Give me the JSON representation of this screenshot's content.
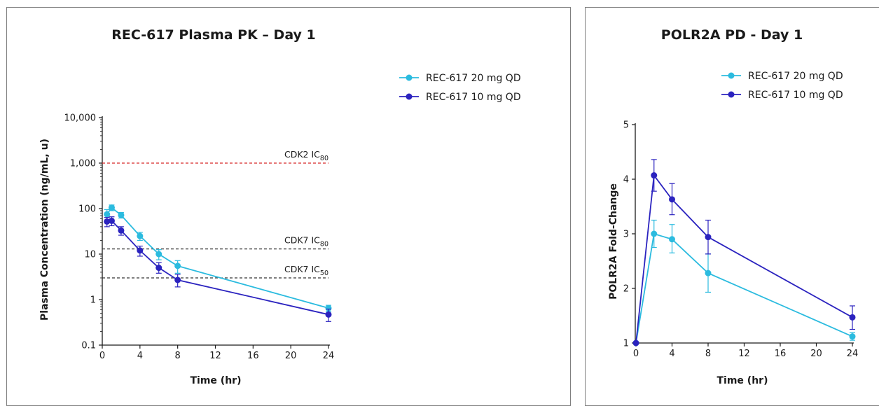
{
  "colors": {
    "series_20mg": "#2bbbdf",
    "series_10mg": "#2b23bf",
    "cdk2_line": "#d62728",
    "cdk7_line": "#333333",
    "axis": "#1a1a1a"
  },
  "chart_data": [
    {
      "type": "line",
      "title": "REC-617 Plasma PK – Day 1",
      "xlabel": "Time (hr)",
      "ylabel": "Plasma Concentration (ng/mL, u)",
      "yscale": "log",
      "xlim": [
        0,
        24
      ],
      "ylim": [
        0.1,
        10000
      ],
      "xticks": [
        0,
        4,
        8,
        12,
        16,
        20,
        24
      ],
      "xtick_labels": [
        "0",
        "4",
        "8",
        "12",
        "16",
        "20",
        "24"
      ],
      "yticks": [
        0.1,
        1,
        10,
        100,
        1000,
        10000
      ],
      "ytick_labels": [
        "0.1",
        "1",
        "10",
        "100",
        "1,000",
        "10,000"
      ],
      "legend_position": "top-right",
      "series": [
        {
          "name": "REC-617 20 mg QD",
          "x": [
            0.5,
            1,
            2,
            4,
            6,
            8,
            24
          ],
          "y": [
            75,
            105,
            72,
            25,
            10,
            5.5,
            0.65
          ],
          "err_low": [
            55,
            90,
            62,
            20,
            7.5,
            3.8,
            0.55
          ],
          "err_high": [
            95,
            120,
            82,
            30,
            12.5,
            7.2,
            0.75
          ]
        },
        {
          "name": "REC-617 10 mg QD",
          "x": [
            0.5,
            1,
            2,
            4,
            6,
            8,
            24
          ],
          "y": [
            52,
            54,
            33,
            12,
            5,
            2.7,
            0.47
          ],
          "err_low": [
            40,
            42,
            26,
            9,
            3.8,
            1.9,
            0.33
          ],
          "err_high": [
            64,
            66,
            40,
            15,
            6.5,
            3.6,
            0.62
          ]
        }
      ],
      "reference_lines": [
        {
          "label_main": "CDK2 IC",
          "label_sub": "80",
          "y": 1000,
          "style": "red-dashed"
        },
        {
          "label_main": "CDK7 IC",
          "label_sub": "80",
          "y": 13,
          "style": "black-dashed"
        },
        {
          "label_main": "CDK7 IC",
          "label_sub": "50",
          "y": 3,
          "style": "black-dashed"
        }
      ]
    },
    {
      "type": "line",
      "title": "POLR2A PD - Day 1",
      "xlabel": "Time (hr)",
      "ylabel": "POLR2A Fold-Change",
      "yscale": "linear",
      "xlim": [
        0,
        24
      ],
      "ylim": [
        1,
        5
      ],
      "xticks": [
        0,
        4,
        8,
        12,
        16,
        20,
        24
      ],
      "xtick_labels": [
        "0",
        "4",
        "8",
        "12",
        "16",
        "20",
        "24"
      ],
      "yticks": [
        1,
        2,
        3,
        4,
        5
      ],
      "ytick_labels": [
        "1",
        "2",
        "3",
        "4",
        "5"
      ],
      "legend_position": "top-right",
      "series": [
        {
          "name": "REC-617 20 mg QD",
          "x": [
            0,
            2,
            4,
            8,
            24
          ],
          "y": [
            1.0,
            3.0,
            2.9,
            2.28,
            1.12
          ],
          "err_low": [
            1.0,
            2.75,
            2.65,
            1.93,
            1.05
          ],
          "err_high": [
            1.0,
            3.25,
            3.17,
            2.63,
            1.19
          ]
        },
        {
          "name": "REC-617 10 mg QD",
          "x": [
            0,
            2,
            4,
            8,
            24
          ],
          "y": [
            1.0,
            4.07,
            3.63,
            2.94,
            1.47
          ],
          "err_low": [
            1.0,
            3.78,
            3.35,
            2.63,
            1.25
          ],
          "err_high": [
            1.0,
            4.36,
            3.92,
            3.25,
            1.68
          ]
        }
      ]
    }
  ]
}
